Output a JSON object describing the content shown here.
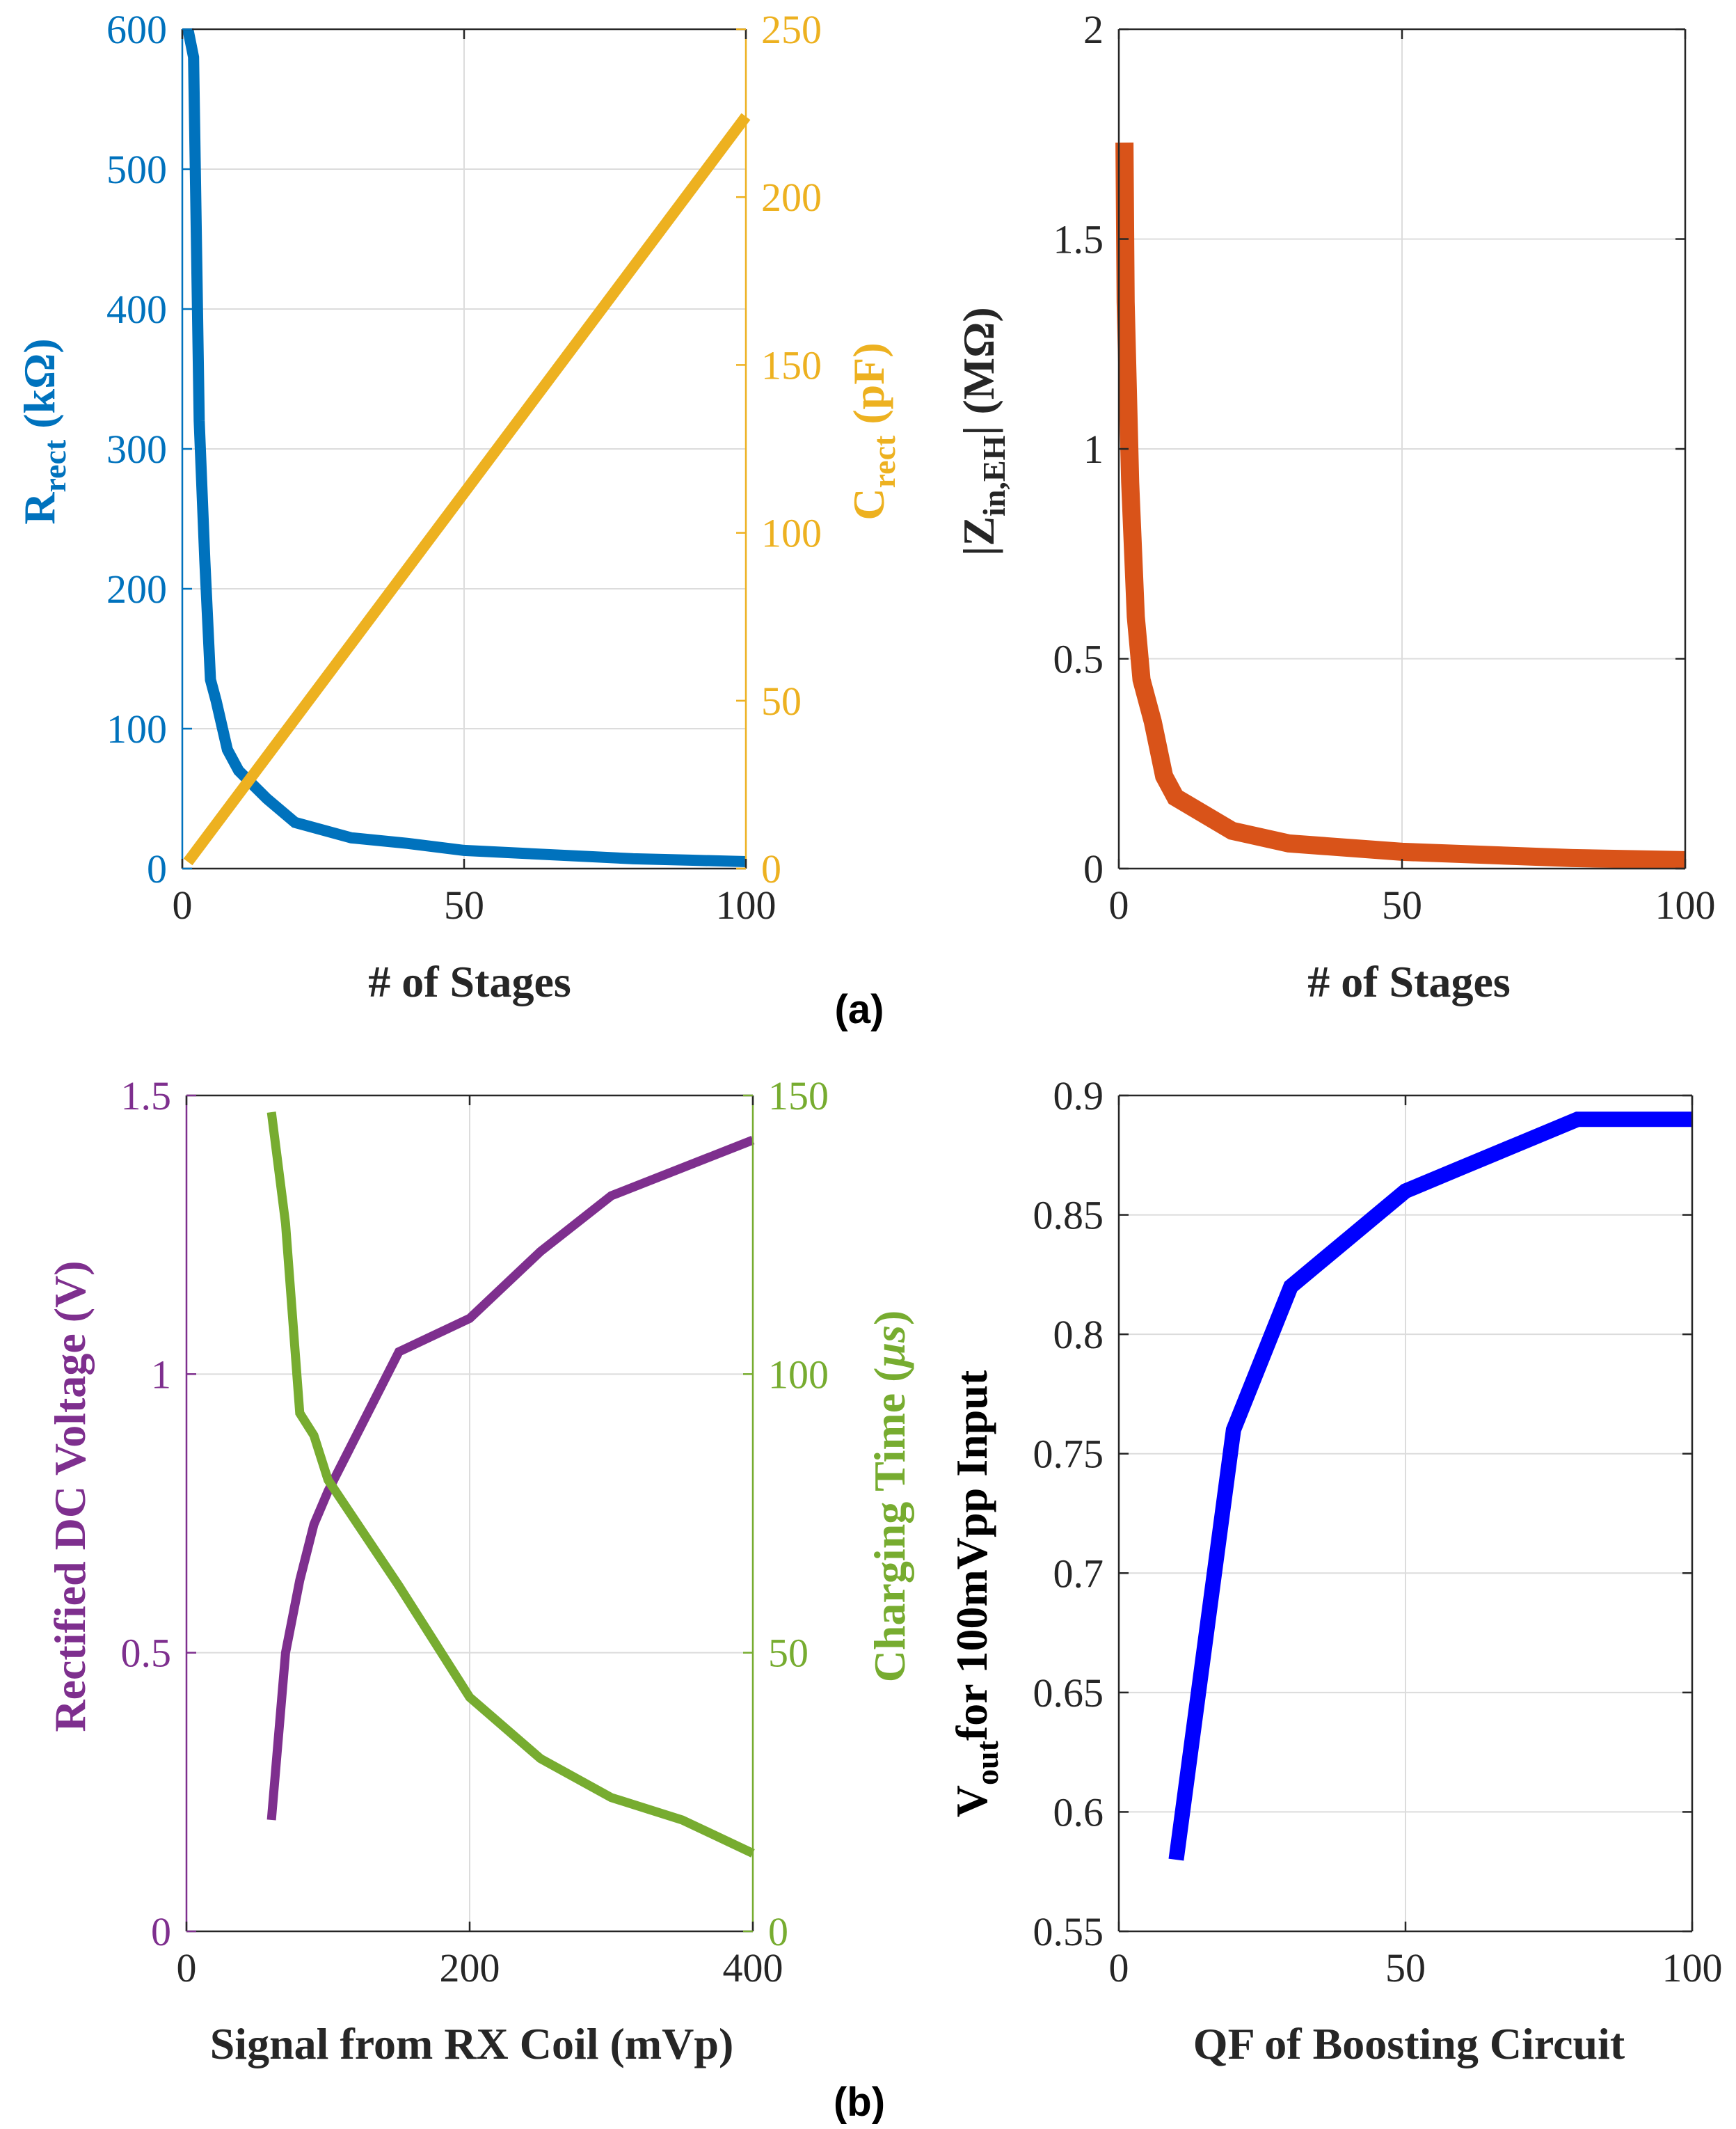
{
  "panel_labels": [
    "(a)",
    "(b)"
  ],
  "colors": {
    "axis": "#262626",
    "grid": "#dcdcdc",
    "blue": "#0072BD",
    "yellow": "#EDB120",
    "orange": "#D95319",
    "purple": "#7E2F8E",
    "green": "#77AC30",
    "pure_blue": "#0000FF"
  },
  "chart_data": [
    {
      "id": "a-left",
      "type": "line",
      "xlabel": "# of Stages",
      "xlim": [
        0,
        100
      ],
      "xticks": [
        0,
        50,
        100
      ],
      "ylabel_left": {
        "main": "R",
        "sub": "rect",
        "rest": " (kΩ)"
      },
      "ylim_left": [
        0,
        600
      ],
      "yticks_left": [
        0,
        100,
        200,
        300,
        400,
        500,
        600
      ],
      "ylabel_right": {
        "main": "C",
        "sub": "rect",
        "rest": " (pF)"
      },
      "ylim_right": [
        0,
        250
      ],
      "yticks_right": [
        0,
        50,
        100,
        150,
        200,
        250
      ],
      "series": [
        {
          "name": "R_rect",
          "axis": "left",
          "color": "blue",
          "x": [
            1,
            2,
            3,
            4,
            5,
            6,
            8,
            10,
            12,
            15,
            20,
            30,
            40,
            50,
            60,
            70,
            80,
            90,
            100
          ],
          "y": [
            600,
            580,
            320,
            220,
            135,
            120,
            85,
            70,
            62,
            50,
            33,
            22,
            18,
            13,
            11,
            9,
            7,
            6,
            5
          ]
        },
        {
          "name": "C_rect",
          "axis": "right",
          "color": "yellow",
          "x": [
            1,
            100
          ],
          "y": [
            2,
            224
          ]
        }
      ]
    },
    {
      "id": "a-right",
      "type": "line",
      "xlabel": "# of Stages",
      "xlim": [
        0,
        100
      ],
      "xticks": [
        0,
        50,
        100
      ],
      "ylabel_left": {
        "pre": "|Z",
        "sub": "in,EH",
        "rest": "| (MΩ)"
      },
      "ylim_left": [
        0,
        2
      ],
      "yticks_left": [
        0,
        0.5,
        1,
        1.5,
        2
      ],
      "series": [
        {
          "name": "|Z_in,EH|",
          "axis": "left",
          "color": "orange",
          "x": [
            1,
            1.2,
            2,
            3,
            4,
            6,
            8,
            10,
            20,
            30,
            50,
            80,
            100
          ],
          "y": [
            1.73,
            1.35,
            0.92,
            0.6,
            0.45,
            0.35,
            0.22,
            0.17,
            0.09,
            0.06,
            0.04,
            0.025,
            0.02
          ]
        }
      ]
    },
    {
      "id": "b-left",
      "type": "line",
      "xlabel": "Signal from RX Coil (mVp)",
      "xlim": [
        0,
        400
      ],
      "xticks": [
        0,
        200,
        400
      ],
      "ylabel_left": {
        "main": "Rectified DC Voltage (V)"
      },
      "ylim_left": [
        0,
        1.5
      ],
      "yticks_left": [
        0,
        0.5,
        1,
        1.5
      ],
      "ylabel_right": {
        "main": "Charging Time (",
        "mu": "μs",
        "rest": ")"
      },
      "ylim_right": [
        0,
        150
      ],
      "yticks_right": [
        0,
        50,
        100,
        150
      ],
      "series": [
        {
          "name": "Rectified DC Voltage",
          "axis": "left",
          "color": "purple",
          "x": [
            60,
            70,
            80,
            90,
            100,
            150,
            200,
            250,
            300,
            350,
            400
          ],
          "y": [
            0.2,
            0.5,
            0.63,
            0.73,
            0.79,
            1.04,
            1.1,
            1.22,
            1.32,
            1.37,
            1.42
          ]
        },
        {
          "name": "Charging Time",
          "axis": "right",
          "color": "green",
          "x": [
            60,
            70,
            80,
            90,
            100,
            150,
            200,
            250,
            300,
            350,
            400
          ],
          "y": [
            147,
            127,
            93,
            89,
            81,
            62,
            42,
            31,
            24,
            20,
            14
          ]
        }
      ]
    },
    {
      "id": "b-right",
      "type": "line",
      "xlabel": "QF of Boosting  Circuit",
      "xlim": [
        0,
        100
      ],
      "xticks": [
        0,
        50,
        100
      ],
      "ylabel_left": {
        "main": "V",
        "sub": "out",
        "rest": "for 100mVpp Input"
      },
      "ylim_left": [
        0.55,
        0.9
      ],
      "yticks_left": [
        0.55,
        0.6,
        0.65,
        0.7,
        0.75,
        0.8,
        0.85,
        0.9
      ],
      "series": [
        {
          "name": "Vout",
          "axis": "left",
          "color": "pure_blue",
          "x": [
            10,
            20,
            30,
            40,
            50,
            60,
            70,
            80,
            90,
            100
          ],
          "y": [
            0.58,
            0.76,
            0.82,
            0.84,
            0.86,
            0.87,
            0.88,
            0.89,
            0.89,
            0.89
          ]
        }
      ]
    }
  ]
}
